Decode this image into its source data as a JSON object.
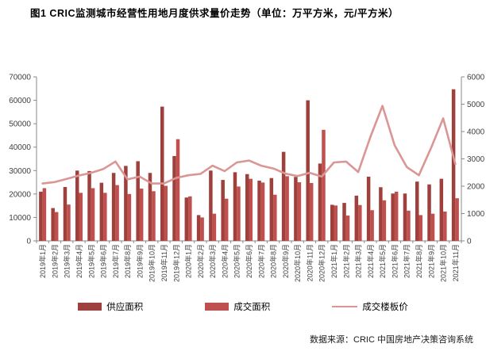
{
  "header": {
    "title": "图1  CRIC监测城市经营性用地月度供求量价走势（单位：万平方米，元/平方米）"
  },
  "footer": {
    "source": "数据来源：CRIC 中国房地产决策咨询系统"
  },
  "colors": {
    "supply_bar": "#9e403c",
    "transaction_bar": "#c0504d",
    "price_line": "#d99694",
    "axis": "#898989",
    "tick_text": "#3f3f3f"
  },
  "legend": {
    "items": [
      {
        "label": "供应面积",
        "type": "bar",
        "color": "#9e403c"
      },
      {
        "label": "成交面积",
        "type": "bar",
        "color": "#c0504d"
      },
      {
        "label": "成交楼板价",
        "type": "line",
        "color": "#d99694"
      }
    ]
  },
  "chart_data": {
    "type": "bar",
    "subtype": "combo-dual-axis",
    "title": "CRIC监测城市经营性用地月度供求量价走势",
    "xlabel": "",
    "ylabel_left": "万平方米",
    "ylabel_right": "元/平方米",
    "left_axis": {
      "min": 0,
      "max": 70000,
      "step": 10000
    },
    "right_axis": {
      "min": 0,
      "max": 6000,
      "step": 1000
    },
    "grid": false,
    "legend_position": "bottom",
    "categories": [
      "2019年1月",
      "2019年2月",
      "2019年3月",
      "2019年4月",
      "2019年5月",
      "2019年6月",
      "2019年7月",
      "2019年8月",
      "2019年9月",
      "2019年10月",
      "2019年11月",
      "2019年12月",
      "2020年1月",
      "2020年2月",
      "2020年3月",
      "2020年4月",
      "2020年5月",
      "2020年6月",
      "2020年7月",
      "2020年8月",
      "2020年9月",
      "2020年10月",
      "2020年11月",
      "2020年12月",
      "2021年1月",
      "2021年2月",
      "2021年3月",
      "2021年4月",
      "2021年5月",
      "2021年6月",
      "2021年7月",
      "2021年8月",
      "2021年9月",
      "2021年10月",
      "2021年11月"
    ],
    "series": [
      {
        "name": "供应面积",
        "type": "bar",
        "axis": "left",
        "color": "#9e403c",
        "values": [
          21000,
          14000,
          23000,
          30000,
          29800,
          24800,
          29000,
          32000,
          34000,
          29000,
          57300,
          36200,
          18500,
          11000,
          30000,
          26000,
          29300,
          28500,
          25700,
          26800,
          38000,
          27300,
          60000,
          33000,
          15400,
          16200,
          19300,
          27400,
          22900,
          20200,
          20200,
          25300,
          24100,
          26500,
          64700
        ]
      },
      {
        "name": "成交面积",
        "type": "bar",
        "axis": "left",
        "color": "#c0504d",
        "values": [
          22500,
          12300,
          15500,
          20500,
          22500,
          20500,
          23800,
          20000,
          22300,
          21200,
          23500,
          43400,
          19000,
          10000,
          11600,
          18000,
          23200,
          26500,
          24900,
          19700,
          27600,
          25000,
          24700,
          47400,
          15100,
          10800,
          15300,
          13100,
          17300,
          21000,
          12900,
          11000,
          11600,
          12500,
          18200
        ]
      },
      {
        "name": "成交楼板价",
        "type": "line",
        "axis": "right",
        "color": "#d99694",
        "values": [
          2100,
          2150,
          2270,
          2390,
          2490,
          2630,
          2900,
          2250,
          2350,
          2100,
          2100,
          2300,
          2400,
          2450,
          2750,
          2550,
          2870,
          2940,
          2750,
          2650,
          2460,
          2370,
          2490,
          2350,
          2870,
          2900,
          2520,
          3800,
          4940,
          3500,
          2700,
          2400,
          3400,
          4480,
          2810
        ]
      }
    ]
  }
}
